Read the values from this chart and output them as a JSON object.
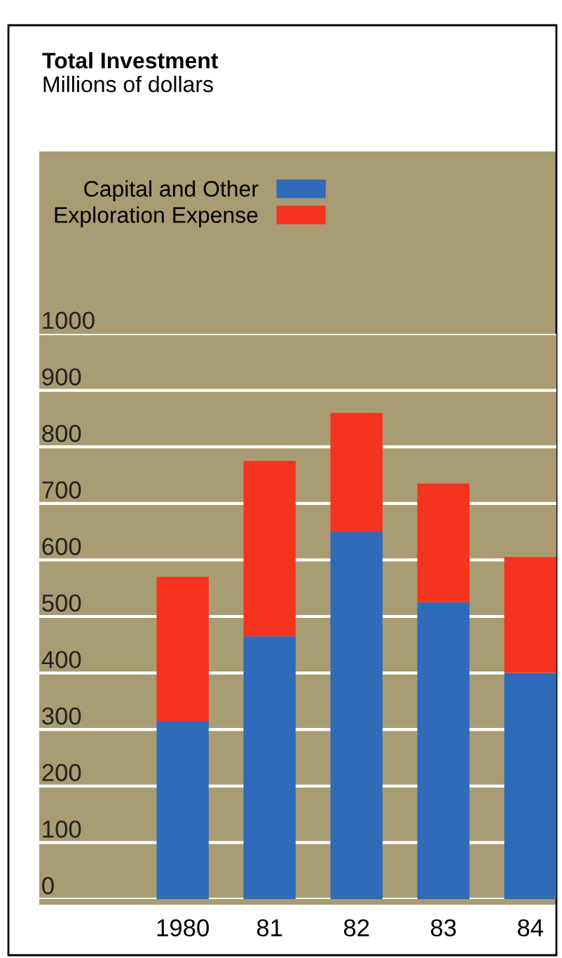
{
  "chart_data": {
    "type": "bar",
    "stacked": true,
    "title": "Total Investment",
    "subtitle": "Millions of dollars",
    "categories": [
      "1980",
      "81",
      "82",
      "83",
      "84"
    ],
    "series": [
      {
        "name": "Capital and Other",
        "color": "#2f6bb8",
        "values": [
          315,
          465,
          650,
          525,
          400
        ]
      },
      {
        "name": "Exploration Expense",
        "color": "#f5341f",
        "values": [
          255,
          310,
          210,
          210,
          205
        ]
      }
    ],
    "ylim": [
      0,
      1000
    ],
    "yticks": [
      0,
      100,
      200,
      300,
      400,
      500,
      600,
      700,
      800,
      900,
      1000
    ],
    "grid": "y",
    "legend": "top"
  }
}
